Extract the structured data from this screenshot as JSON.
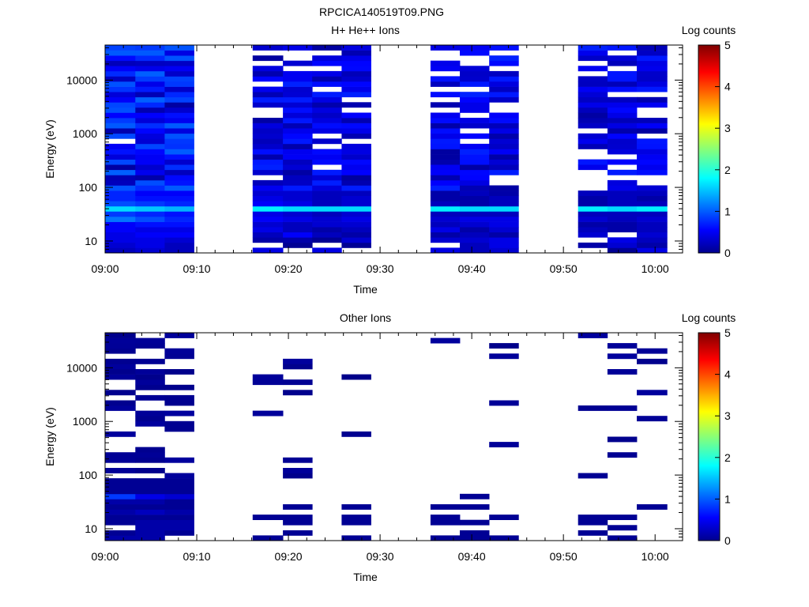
{
  "figure_title": "RPCICA140519T09.PNG",
  "chart_data": [
    {
      "type": "heatmap",
      "title": "H+ He++ Ions",
      "xlabel": "Time",
      "ylabel": "Energy (eV)",
      "y_scale": "log",
      "xlim": [
        "09:00",
        "10:03"
      ],
      "ylim": [
        6,
        45000
      ],
      "x_tick_labels": [
        "09:00",
        "09:10",
        "09:20",
        "09:30",
        "09:40",
        "09:50",
        "10:00"
      ],
      "y_tick_labels": [
        "10",
        "100",
        "1000",
        "10000"
      ],
      "colorbar": {
        "label": "Log counts",
        "range": [
          0,
          5
        ],
        "tick_labels": [
          "0",
          "1",
          "2",
          "3",
          "4",
          "5"
        ]
      },
      "time_columns": [
        {
          "start": "09:00.0",
          "end": "09:03.3",
          "log_counts_low_energy": [
            0.3,
            0.4,
            0.5,
            0.5,
            0.6,
            0.6,
            1.2,
            0.9,
            1.7,
            1.0,
            0.8,
            0.8
          ]
        },
        {
          "start": "09:03.3",
          "end": "09:06.5",
          "log_counts_low_energy": [
            0.4,
            0.5,
            0.5,
            0.6,
            0.5,
            0.7,
            1.0,
            0.8,
            1.6,
            0.9,
            0.7,
            0.6
          ]
        },
        {
          "start": "09:06.5",
          "end": "09:09.7",
          "log_counts_low_energy": [
            0.3,
            0.3,
            0.4,
            0.6,
            0.5,
            0.7,
            0.8,
            0.7,
            1.5,
            0.8,
            0.7,
            0.6
          ]
        },
        {
          "start": "09:16.1",
          "end": "09:19.4",
          "log_counts_low_energy": [
            0.5,
            null,
            0.2,
            0.3,
            0.5,
            0.4,
            0.6,
            0.5,
            1.8,
            0.6,
            0.5,
            0.4
          ]
        },
        {
          "start": "09:19.4",
          "end": "09:22.6",
          "log_counts_low_energy": [
            null,
            0.1,
            0.2,
            0.6,
            0.3,
            0.3,
            0.5,
            0.4,
            1.7,
            0.5,
            0.4,
            0.4
          ]
        },
        {
          "start": "09:22.6",
          "end": "09:25.8",
          "log_counts_low_energy": [
            0.5,
            null,
            0.1,
            0.3,
            0.2,
            0.4,
            0.4,
            0.3,
            1.7,
            0.3,
            0.3,
            0.3
          ]
        },
        {
          "start": "09:25.8",
          "end": "09:29.0",
          "log_counts_low_energy": [
            null,
            0.1,
            0.4,
            0.2,
            0.3,
            0.4,
            0.5,
            0.4,
            1.7,
            0.4,
            0.4,
            0.3
          ]
        },
        {
          "start": "09:35.5",
          "end": "09:38.7",
          "log_counts_low_energy": [
            0.5,
            null,
            0.4,
            0.2,
            0.5,
            0.3,
            0.4,
            0.3,
            1.8,
            0.3,
            0.2,
            0.2
          ]
        },
        {
          "start": "09:38.7",
          "end": "09:41.9",
          "log_counts_low_energy": [
            0.3,
            0.3,
            0.4,
            0.3,
            0.2,
            0.4,
            0.5,
            0.3,
            1.7,
            0.2,
            0.2,
            0.3
          ]
        },
        {
          "start": "09:41.9",
          "end": "09:45.1",
          "log_counts_low_energy": [
            0.4,
            0.5,
            0.5,
            0.2,
            0.4,
            0.5,
            0.5,
            0.3,
            1.7,
            0.3,
            0.3,
            0.2
          ]
        },
        {
          "start": "09:51.6",
          "end": "09:54.8",
          "log_counts_low_energy": [
            null,
            0.2,
            null,
            0.4,
            0.3,
            0.2,
            0.4,
            0.3,
            1.8,
            0.2,
            0.2,
            0.3
          ]
        },
        {
          "start": "09:54.8",
          "end": "09:58.0",
          "log_counts_low_energy": [
            0.1,
            0.4,
            0.5,
            null,
            0.2,
            0.2,
            0.3,
            0.3,
            1.7,
            0.3,
            0.3,
            0.3
          ]
        },
        {
          "start": "09:58.0",
          "end": "10:01.3",
          "log_counts_low_energy": [
            0.5,
            0.2,
            0.3,
            0.4,
            0.3,
            0.3,
            0.4,
            0.3,
            1.8,
            0.3,
            0.2,
            0.3
          ]
        }
      ]
    },
    {
      "type": "heatmap",
      "title": "Other Ions",
      "xlabel": "Time",
      "ylabel": "Energy (eV)",
      "y_scale": "log",
      "xlim": [
        "09:00",
        "10:03"
      ],
      "ylim": [
        6,
        45000
      ],
      "x_tick_labels": [
        "09:00",
        "09:10",
        "09:20",
        "09:30",
        "09:40",
        "09:50",
        "10:00"
      ],
      "y_tick_labels": [
        "10",
        "100",
        "1000",
        "10000"
      ],
      "colorbar": {
        "label": "Log counts",
        "range": [
          0,
          5
        ],
        "tick_labels": [
          "0",
          "1",
          "2",
          "3",
          "4",
          "5"
        ]
      },
      "time_columns": [
        {
          "start": "09:00.0",
          "end": "09:03.3",
          "log_counts_low_energy": [
            0.2,
            0.1,
            null,
            0.1,
            0.1,
            0.2,
            0.1,
            0.2,
            0.9,
            0.1,
            0.1,
            0.1
          ]
        },
        {
          "start": "09:03.3",
          "end": "09:06.5",
          "log_counts_low_energy": [
            0.2,
            0.2,
            0.2,
            0.2,
            0.1,
            0.3,
            0.1,
            0.2,
            0.5,
            0.1,
            0.1,
            0.1
          ]
        },
        {
          "start": "09:06.5",
          "end": "09:09.7",
          "log_counts_low_energy": [
            null,
            0.1,
            0.2,
            0.2,
            0.1,
            0.2,
            0.1,
            0.1,
            0.4,
            0.1,
            0.1,
            0.1
          ]
        },
        {
          "start": "09:16.1",
          "end": "09:19.4",
          "log_counts_low_energy": [
            0.1,
            null,
            null,
            null,
            0.1,
            null,
            null,
            null,
            null,
            null,
            null,
            null
          ]
        },
        {
          "start": "09:19.4",
          "end": "09:22.6",
          "log_counts_low_energy": [
            null,
            0.1,
            null,
            0.1,
            0.1,
            null,
            0.1,
            null,
            null,
            null,
            null,
            null
          ]
        },
        {
          "start": "09:25.8",
          "end": "09:29.0",
          "log_counts_low_energy": [
            0.1,
            null,
            null,
            0.1,
            0.1,
            null,
            0.1,
            null,
            null,
            null,
            null,
            null
          ]
        },
        {
          "start": "09:35.5",
          "end": "09:38.7",
          "log_counts_low_energy": [
            0.1,
            null,
            null,
            0.1,
            0.1,
            null,
            0.1,
            null,
            null,
            null,
            null,
            null
          ]
        },
        {
          "start": "09:38.7",
          "end": "09:41.9",
          "log_counts_low_energy": [
            0.1,
            0.1,
            null,
            0.1,
            null,
            null,
            0.1,
            null,
            0.1,
            null,
            null,
            null
          ]
        },
        {
          "start": "09:41.9",
          "end": "09:45.1",
          "log_counts_low_energy": [
            0.1,
            null,
            null,
            null,
            0.1,
            null,
            null,
            null,
            null,
            null,
            null,
            null
          ]
        },
        {
          "start": "09:51.6",
          "end": "09:54.8",
          "log_counts_low_energy": [
            null,
            0.1,
            null,
            0.1,
            0.1,
            null,
            null,
            null,
            null,
            null,
            null,
            null
          ]
        },
        {
          "start": "09:54.8",
          "end": "09:58.0",
          "log_counts_low_energy": [
            0.1,
            null,
            0.1,
            null,
            0.1,
            null,
            null,
            null,
            null,
            null,
            null,
            null
          ]
        },
        {
          "start": "09:58.0",
          "end": "10:01.3",
          "log_counts_low_energy": [
            null,
            null,
            null,
            null,
            null,
            null,
            0.1,
            null,
            null,
            null,
            null,
            null
          ]
        }
      ]
    }
  ]
}
